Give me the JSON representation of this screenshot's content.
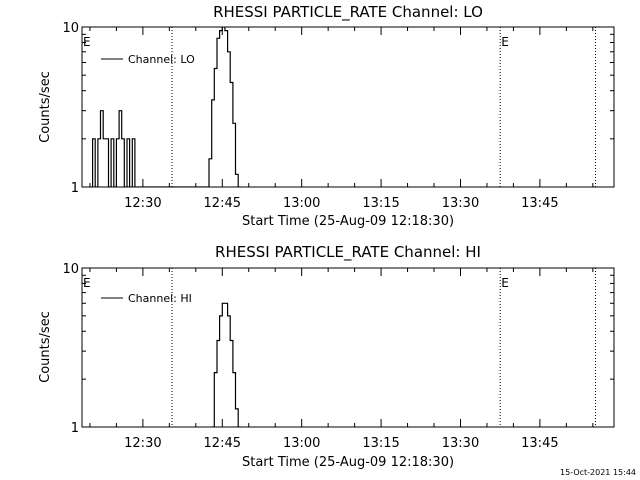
{
  "stamp": "15-Oct-2021 15:44",
  "chart_data": [
    {
      "type": "line",
      "title": "RHESSI PARTICLE_RATE Channel: LO",
      "xlabel": "Start Time (25-Aug-09 12:18:30)",
      "ylabel": "Counts/sec",
      "yscale": "log",
      "ylim": [
        1,
        10
      ],
      "ytick_labels": [
        "1",
        "10"
      ],
      "xlim": [
        "12:18:30",
        "13:59:00"
      ],
      "xtick_labels": [
        "12:30",
        "12:45",
        "13:00",
        "13:15",
        "13:30",
        "13:45"
      ],
      "legend": {
        "placement": "top-left",
        "entries": [
          "Channel: LO"
        ]
      },
      "annotations": [
        {
          "text": "E",
          "x": "12:18:30"
        },
        {
          "text": "E",
          "x": "13:37:30"
        }
      ],
      "vlines": [
        "12:35:30",
        "13:37:30",
        "13:55:30"
      ],
      "series": [
        {
          "name": "Channel: LO",
          "x": [
            "12:20:00",
            "12:20:30",
            "12:21:00",
            "12:21:30",
            "12:22:00",
            "12:22:30",
            "12:23:00",
            "12:23:30",
            "12:24:00",
            "12:24:30",
            "12:25:00",
            "12:25:30",
            "12:26:00",
            "12:26:30",
            "12:27:00",
            "12:27:30",
            "12:28:00",
            "12:28:30",
            "12:29:00",
            "12:29:30",
            "12:42:00",
            "12:42:30",
            "12:43:00",
            "12:43:30",
            "12:44:00",
            "12:44:30",
            "12:45:00",
            "12:45:30",
            "12:46:00",
            "12:46:30",
            "12:47:00",
            "12:47:30",
            "12:48:00"
          ],
          "values": [
            1,
            2,
            1,
            2,
            3,
            2,
            2,
            1,
            2,
            1,
            2,
            3,
            2,
            1,
            2,
            1,
            2,
            1,
            1,
            1,
            1,
            1.5,
            3.5,
            5.5,
            8.5,
            9.5,
            10.5,
            9.5,
            7,
            4.5,
            2.5,
            1.2,
            1
          ]
        }
      ]
    },
    {
      "type": "line",
      "title": "RHESSI PARTICLE_RATE Channel: HI",
      "xlabel": "Start Time (25-Aug-09 12:18:30)",
      "ylabel": "Counts/sec",
      "yscale": "log",
      "ylim": [
        1,
        10
      ],
      "ytick_labels": [
        "1",
        "10"
      ],
      "xlim": [
        "12:18:30",
        "13:59:00"
      ],
      "xtick_labels": [
        "12:30",
        "12:45",
        "13:00",
        "13:15",
        "13:30",
        "13:45"
      ],
      "legend": {
        "placement": "top-left",
        "entries": [
          "Channel: HI"
        ]
      },
      "annotations": [
        {
          "text": "E",
          "x": "12:18:30"
        },
        {
          "text": "E",
          "x": "13:37:30"
        }
      ],
      "vlines": [
        "12:35:30",
        "13:37:30",
        "13:55:30"
      ],
      "series": [
        {
          "name": "Channel: HI",
          "x": [
            "12:43:00",
            "12:43:30",
            "12:44:00",
            "12:44:30",
            "12:45:00",
            "12:45:30",
            "12:46:00",
            "12:46:30",
            "12:47:00",
            "12:47:30",
            "12:48:00"
          ],
          "values": [
            1,
            2.2,
            3.5,
            5,
            6,
            6,
            5,
            3.5,
            2.2,
            1.3,
            1
          ]
        }
      ]
    }
  ]
}
